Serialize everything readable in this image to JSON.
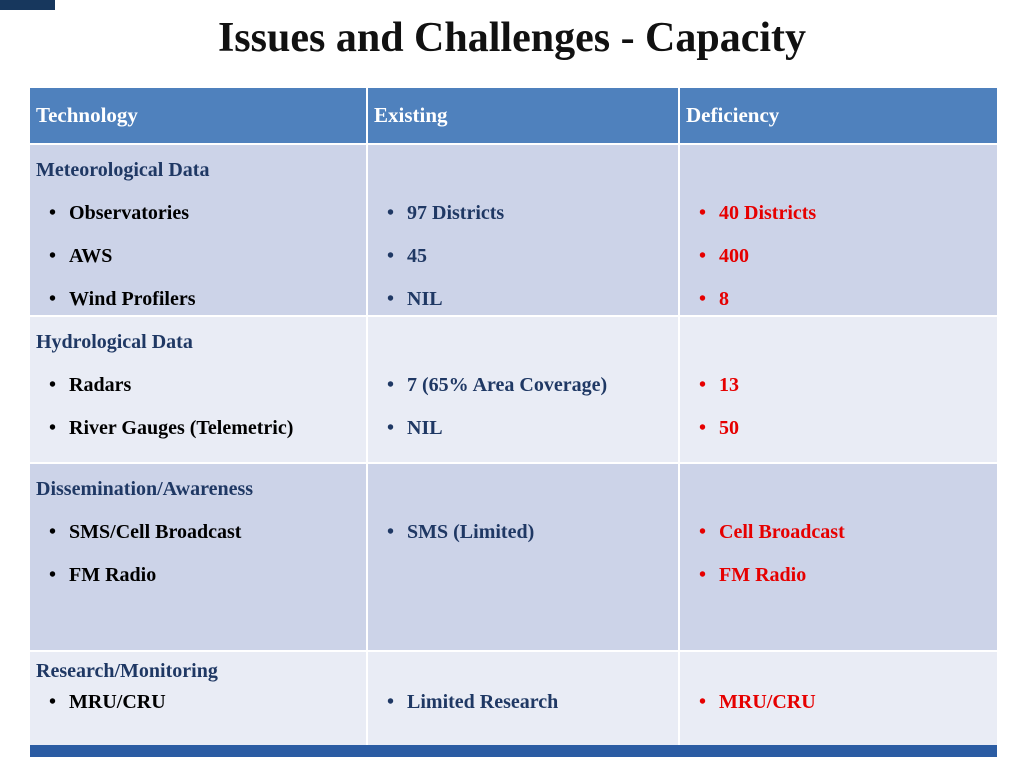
{
  "title": "Issues and Challenges - Capacity",
  "table": {
    "headers": [
      {
        "label": "Technology"
      },
      {
        "label": "Existing"
      },
      {
        "label": "Deficiency"
      }
    ],
    "rows": [
      {
        "category": "Meteorological Data",
        "technology": [
          "Observatories",
          "AWS",
          "Wind Profilers"
        ],
        "existing": [
          "97 Districts",
          "45",
          "NIL"
        ],
        "deficiency": [
          "40 Districts",
          "400",
          "8"
        ]
      },
      {
        "category": "Hydrological Data",
        "technology": [
          "Radars",
          "River Gauges (Telemetric)"
        ],
        "existing": [
          "7 (65% Area Coverage)",
          "NIL"
        ],
        "deficiency": [
          "13",
          "50"
        ]
      },
      {
        "category": "Dissemination/Awareness",
        "technology": [
          "SMS/Cell Broadcast",
          "FM Radio"
        ],
        "existing": [
          "SMS (Limited)"
        ],
        "deficiency": [
          "Cell Broadcast",
          "FM Radio"
        ]
      },
      {
        "category": "Research/Monitoring",
        "technology": [
          "MRU/CRU"
        ],
        "existing": [
          "Limited Research"
        ],
        "deficiency": [
          "MRU/CRU"
        ]
      }
    ]
  },
  "colors": {
    "header_bg": "#4f81bd",
    "band_dark": "#ccd3e8",
    "band_light": "#e9ecf5",
    "category_text": "#1f3864",
    "existing_text": "#1f3864",
    "deficiency_text": "#e60000",
    "accent_bar": "#2b5ca3",
    "corner_accent": "#17375d"
  }
}
